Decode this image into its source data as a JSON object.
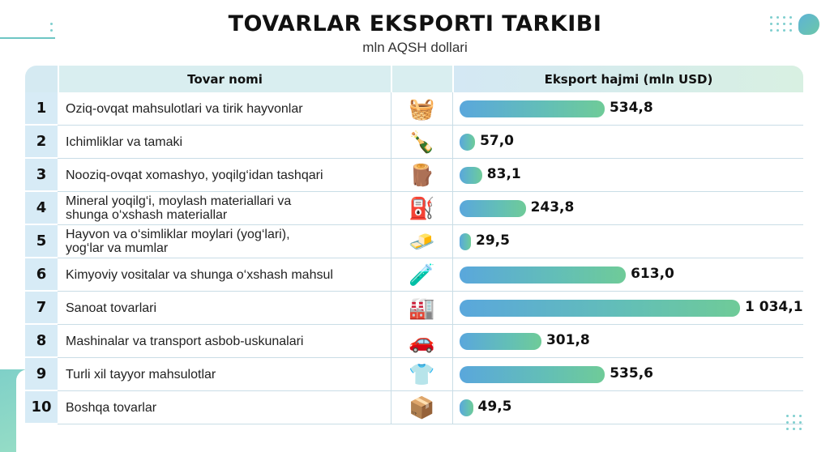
{
  "title": "TOVARLAR EKSPORTI TARKIBI",
  "subtitle": "mln AQSH dollari",
  "table": {
    "col_name": "Tovar nomi",
    "col_value": "Eksport hajmi (mln USD)"
  },
  "colors": {
    "bar_start": "#5aa7dc",
    "bar_end": "#6fcb98",
    "header_bg": "#d9eef0",
    "number_bg": "#d7ebf6"
  },
  "chart_data": {
    "type": "bar",
    "orientation": "horizontal",
    "title": "TOVARLAR EKSPORTI TARKIBI",
    "subtitle": "mln AQSH dollari",
    "xlabel": "Eksport hajmi (mln USD)",
    "categories": [
      "Oziq-ovqat mahsulotlari va tirik hayvonlar",
      "Ichimliklar va tamaki",
      "Nooziq-ovqat xomashyo, yoqilg‘idan tashqari",
      "Mineral yoqilg‘i, moylash materiallari va shunga o‘xshash materiallar",
      "Hayvon va o‘simliklar moylari (yog‘lari), yog‘lar va mumlar",
      "Kimyoviy vositalar va shunga o‘xshash mahsul",
      "Sanoat tovarlari",
      "Mashinalar va transport asbob-uskunalari",
      "Turli xil tayyor mahsulotlar",
      "Boshqa tovarlar"
    ],
    "values": [
      534.8,
      57.0,
      83.1,
      243.8,
      29.5,
      613.0,
      1034.1,
      301.8,
      535.6,
      49.5
    ],
    "value_labels": [
      "534,8",
      "57,0",
      "83,1",
      "243,8",
      "29,5",
      "613,0",
      "1 034,1",
      "301,8",
      "535,6",
      "49,5"
    ],
    "xlim": [
      0,
      1034.1
    ]
  },
  "rows": [
    {
      "num": "1",
      "name_lines": [
        "Oziq-ovqat mahsulotlari va tirik hayvonlar"
      ],
      "icon": "food-basket-icon",
      "glyph": "🧺"
    },
    {
      "num": "2",
      "name_lines": [
        "Ichimliklar va tamaki"
      ],
      "icon": "bottle-cigarette-icon",
      "glyph": "🍾"
    },
    {
      "num": "3",
      "name_lines": [
        "Nooziq-ovqat xomashyo, yoqilg‘idan tashqari"
      ],
      "icon": "cotton-wood-icon",
      "glyph": "🪵"
    },
    {
      "num": "4",
      "name_lines": [
        "Mineral yoqilg‘i, moylash materiallari va",
        "shunga o‘xshash materiallar"
      ],
      "icon": "fuel-barrel-icon",
      "glyph": "⛽"
    },
    {
      "num": "5",
      "name_lines": [
        "Hayvon va o‘simliklar moylari (yog‘lari),",
        "yog‘lar va mumlar"
      ],
      "icon": "oil-butter-icon",
      "glyph": "🧈"
    },
    {
      "num": "6",
      "name_lines": [
        "Kimyoviy vositalar va shunga o‘xshash mahsul"
      ],
      "icon": "test-tubes-icon",
      "glyph": "🧪"
    },
    {
      "num": "7",
      "name_lines": [
        "Sanoat tovarlari"
      ],
      "icon": "factory-icon",
      "glyph": "🏭"
    },
    {
      "num": "8",
      "name_lines": [
        "Mashinalar va transport asbob-uskunalari"
      ],
      "icon": "car-gear-icon",
      "glyph": "🚗"
    },
    {
      "num": "9",
      "name_lines": [
        "Turli xil tayyor mahsulotlar"
      ],
      "icon": "clothes-appliance-icon",
      "glyph": "👕"
    },
    {
      "num": "10",
      "name_lines": [
        "Boshqa tovarlar"
      ],
      "icon": "open-box-icon",
      "glyph": "📦"
    }
  ]
}
